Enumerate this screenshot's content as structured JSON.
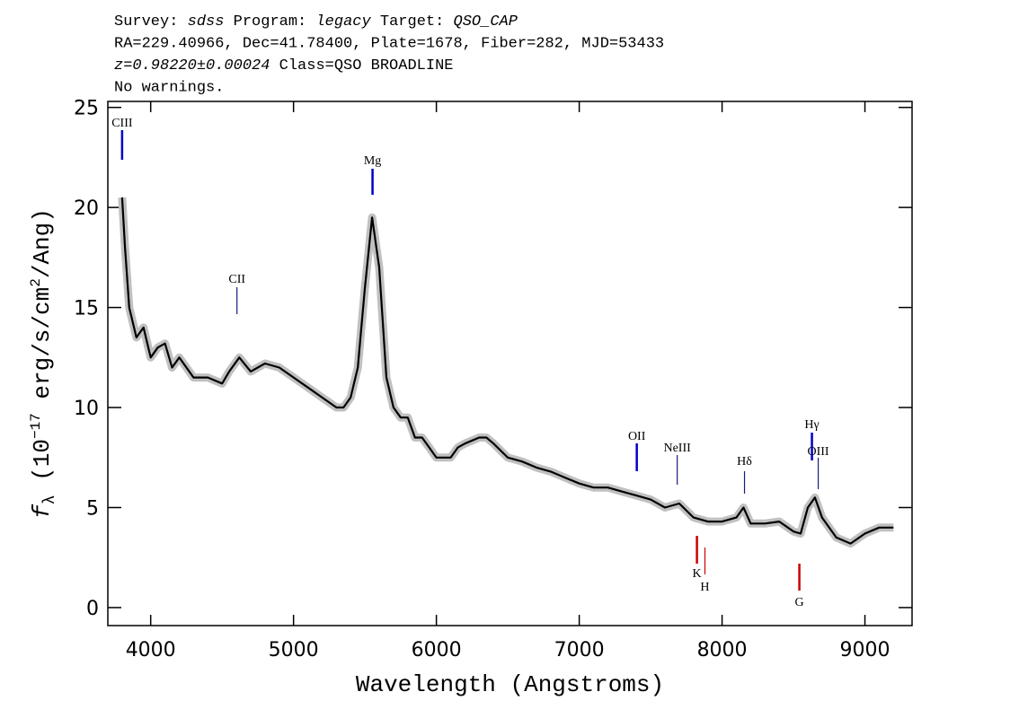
{
  "chart_data": {
    "type": "line",
    "header": [
      [
        {
          "text": "Survey: ",
          "italic": false
        },
        {
          "text": "sdss",
          "italic": true
        },
        {
          "text": " Program: ",
          "italic": false
        },
        {
          "text": "legacy",
          "italic": true
        },
        {
          "text": " Target: ",
          "italic": false
        },
        {
          "text": "QSO_CAP",
          "italic": true
        }
      ],
      [
        {
          "text": "RA=229.40966, Dec=41.78400, Plate=1678, Fiber=282, MJD=53433",
          "italic": false
        }
      ],
      [
        {
          "text": "z=0.98220±0.00024",
          "italic": true
        },
        {
          "text": " Class=QSO BROADLINE",
          "italic": false
        }
      ],
      [
        {
          "text": "No warnings.",
          "italic": false
        }
      ]
    ],
    "xlabel": "Wavelength (Angstroms)",
    "ylabel": [
      {
        "text": "f",
        "style": "italic"
      },
      {
        "text": "λ",
        "style": "sub"
      },
      {
        "text": " (10",
        "style": "normal"
      },
      {
        "text": "−17",
        "style": "sup"
      },
      {
        "text": " erg/s/cm",
        "style": "normal"
      },
      {
        "text": "2",
        "style": "sup"
      },
      {
        "text": "/Ang)",
        "style": "normal"
      }
    ],
    "x": [
      3800,
      3820,
      3850,
      3900,
      3950,
      4000,
      4050,
      4100,
      4150,
      4200,
      4300,
      4400,
      4500,
      4550,
      4620,
      4700,
      4800,
      4900,
      5000,
      5100,
      5200,
      5300,
      5350,
      5400,
      5450,
      5500,
      5550,
      5600,
      5650,
      5700,
      5750,
      5800,
      5850,
      5900,
      5950,
      6000,
      6050,
      6100,
      6150,
      6200,
      6300,
      6350,
      6400,
      6500,
      6600,
      6700,
      6800,
      6900,
      7000,
      7100,
      7200,
      7300,
      7400,
      7500,
      7600,
      7700,
      7800,
      7900,
      8000,
      8100,
      8150,
      8200,
      8300,
      8400,
      8500,
      8550,
      8600,
      8650,
      8700,
      8800,
      8900,
      9000,
      9100,
      9200
    ],
    "series": [
      {
        "color": "#000000",
        "band_color": "#c0c0c0",
        "values": [
          20.5,
          18,
          15,
          13.5,
          14,
          12.5,
          13,
          13.2,
          12,
          12.5,
          11.5,
          11.5,
          11.2,
          11.8,
          12.5,
          11.8,
          12.2,
          12,
          11.5,
          11,
          10.5,
          10,
          10,
          10.5,
          12,
          16,
          19.5,
          17,
          11.5,
          10,
          9.5,
          9.5,
          8.5,
          8.5,
          8,
          7.5,
          7.5,
          7.5,
          8,
          8.2,
          8.5,
          8.5,
          8.2,
          7.5,
          7.3,
          7,
          6.8,
          6.5,
          6.2,
          6,
          6,
          5.8,
          5.6,
          5.4,
          5,
          5.2,
          4.5,
          4.3,
          4.3,
          4.5,
          5,
          4.2,
          4.2,
          4.3,
          3.8,
          3.7,
          5,
          5.5,
          4.5,
          3.5,
          3.2,
          3.7,
          4,
          4
        ]
      }
    ],
    "lines": [
      {
        "label": "CIII",
        "x": 3800,
        "color": "#0000cc",
        "thick": true
      },
      {
        "label": "CII",
        "x": 4604,
        "color": "#1a1a80",
        "thick": false
      },
      {
        "label": "Mg",
        "x": 5553,
        "color": "#0000cc",
        "thick": true
      },
      {
        "label": "OII",
        "x": 7403,
        "color": "#0000cc",
        "thick": true
      },
      {
        "label": "NeIII",
        "x": 7686,
        "color": "#1a1a80",
        "thick": false
      },
      {
        "label": "Hδ",
        "x": 8157,
        "color": "#1a1a80",
        "thick": false
      },
      {
        "label": "Hγ",
        "x": 8629,
        "color": "#0000cc",
        "thick": true
      },
      {
        "label": "OIII",
        "x": 8673,
        "color": "#1a1a80",
        "thick": false
      },
      {
        "label": "K",
        "x": 7824,
        "color": "#cc0000",
        "thick": true
      },
      {
        "label": "H",
        "x": 7880,
        "color": "#cc0000",
        "thick": false
      },
      {
        "label": "G",
        "x": 8541,
        "color": "#cc0000",
        "thick": true
      }
    ],
    "xlim": [
      3700,
      9330
    ],
    "ylim": [
      -0.9,
      25.3
    ],
    "xticks": [
      4000,
      5000,
      6000,
      7000,
      8000,
      9000
    ],
    "yticks": [
      0,
      5,
      10,
      15,
      20,
      25
    ]
  }
}
